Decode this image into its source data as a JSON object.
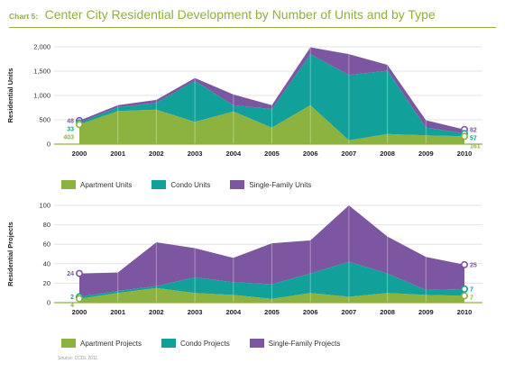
{
  "title_prefix": "Chart 5:",
  "title": "Center City Residential Development by Number of Units and by Type",
  "source": "Source: CCDL 2011",
  "colors": {
    "apartment": "#8cb23f",
    "condo": "#12a09a",
    "single_family": "#7d56a2",
    "grid": "#e3e3e3"
  },
  "chart_data": [
    {
      "type": "area",
      "stacked": true,
      "ylabel": "Residential Units",
      "x": [
        "2000",
        "2001",
        "2002",
        "2003",
        "2004",
        "2005",
        "2006",
        "2007",
        "2008",
        "2009",
        "2010"
      ],
      "ylim": [
        0,
        2000
      ],
      "yticks": [
        "0",
        "500",
        "1,000",
        "1,500",
        "2,000"
      ],
      "grid": true,
      "legend_position": "bottom",
      "series": [
        {
          "name": "Apartment Units",
          "color_key": "apartment",
          "values": [
            403,
            680,
            710,
            460,
            670,
            340,
            800,
            80,
            210,
            180,
            161
          ]
        },
        {
          "name": "Condo Units",
          "color_key": "condo",
          "values": [
            33,
            80,
            140,
            840,
            130,
            380,
            1050,
            1340,
            1300,
            160,
            57
          ]
        },
        {
          "name": "Single-Family Units",
          "color_key": "single_family",
          "values": [
            48,
            40,
            60,
            60,
            220,
            80,
            140,
            430,
            120,
            150,
            82
          ]
        }
      ],
      "labels_start": [
        "48",
        "33",
        "403"
      ],
      "labels_end": [
        "82",
        "57",
        "161"
      ]
    },
    {
      "type": "area",
      "stacked": true,
      "ylabel": "Residential Projects",
      "x": [
        "2000",
        "2001",
        "2002",
        "2003",
        "2004",
        "2005",
        "2006",
        "2007",
        "2008",
        "2009",
        "2010"
      ],
      "ylim": [
        0,
        100
      ],
      "yticks": [
        "0",
        "20",
        "40",
        "60",
        "80",
        "100"
      ],
      "grid": true,
      "legend_position": "bottom",
      "series": [
        {
          "name": "Apartment Projects",
          "color_key": "apartment",
          "values": [
            4,
            10,
            15,
            10,
            8,
            4,
            10,
            6,
            10,
            8,
            7
          ]
        },
        {
          "name": "Condo Projects",
          "color_key": "condo",
          "values": [
            2,
            2,
            2,
            16,
            13,
            15,
            20,
            36,
            20,
            5,
            7
          ]
        },
        {
          "name": "Single-Family Projects",
          "color_key": "single_family",
          "values": [
            24,
            19,
            45,
            30,
            25,
            42,
            34,
            58,
            38,
            34,
            25
          ]
        }
      ],
      "labels_start": [
        "24",
        "2",
        "4"
      ],
      "labels_end": [
        "25",
        "7",
        "7"
      ]
    }
  ]
}
